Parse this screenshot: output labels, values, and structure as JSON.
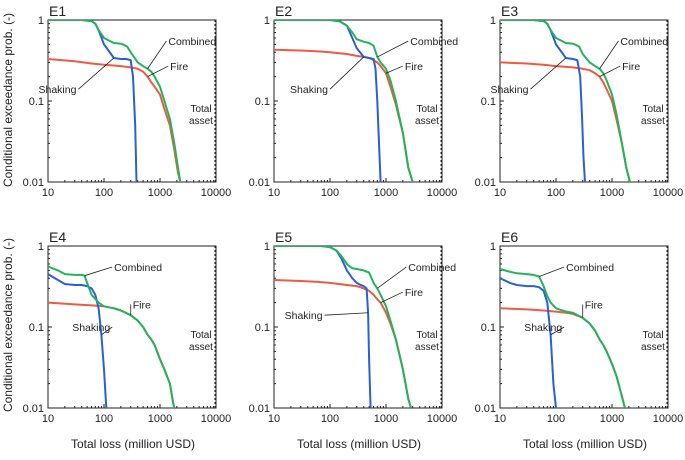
{
  "figure": {
    "ylabel": "Conditional exceedance prob. (-)",
    "xlabel": "Total loss (million USD)",
    "asset_label_line1": "Total",
    "asset_label_line2": "asset"
  },
  "colors": {
    "combined": "#22b45a",
    "fire": "#ee5a44",
    "shaking": "#2b5fd6",
    "asset_line": "#222222",
    "axis": "#222222"
  },
  "chart_data": [
    {
      "type": "line",
      "title": "E1",
      "xscale": "log",
      "yscale": "log",
      "xlim": [
        10,
        10000
      ],
      "ylim": [
        0.01,
        1
      ],
      "xticks": [
        "10",
        "100",
        "1000",
        "10000"
      ],
      "yticks": [
        "0.01",
        "0.1",
        "1"
      ],
      "total_asset_x": 10000,
      "series": [
        {
          "name": "Combined",
          "x": [
            10,
            40,
            60,
            70,
            80,
            100,
            150,
            200,
            230,
            260,
            300,
            400,
            500,
            600,
            700,
            800,
            1000,
            1200,
            1500,
            1800,
            2100,
            2300
          ],
          "y": [
            1,
            1,
            0.97,
            0.9,
            0.75,
            0.6,
            0.52,
            0.51,
            0.49,
            0.47,
            0.4,
            0.3,
            0.27,
            0.25,
            0.23,
            0.2,
            0.15,
            0.1,
            0.06,
            0.03,
            0.015,
            0.01
          ]
        },
        {
          "name": "Fire",
          "x": [
            10,
            30,
            60,
            100,
            200,
            300,
            400,
            500,
            600,
            700,
            800,
            1000,
            1200,
            1500,
            1800,
            2100,
            2300
          ],
          "y": [
            0.33,
            0.31,
            0.29,
            0.28,
            0.27,
            0.26,
            0.25,
            0.23,
            0.2,
            0.17,
            0.15,
            0.12,
            0.08,
            0.05,
            0.025,
            0.013,
            0.01
          ]
        },
        {
          "name": "Shaking",
          "x": [
            10,
            40,
            60,
            70,
            80,
            100,
            150,
            200,
            250,
            300,
            330,
            360,
            380
          ],
          "y": [
            1,
            1,
            0.97,
            0.9,
            0.75,
            0.5,
            0.34,
            0.33,
            0.33,
            0.32,
            0.2,
            0.05,
            0.01
          ]
        }
      ],
      "labels": [
        {
          "series": "Combined",
          "text": "Combined",
          "x": 1300,
          "y": 0.55
        },
        {
          "series": "Fire",
          "text": "Fire",
          "x": 1400,
          "y": 0.27
        },
        {
          "series": "Shaking",
          "text": "Shaking",
          "x": 35,
          "y": 0.14
        }
      ]
    },
    {
      "type": "line",
      "title": "E2",
      "xscale": "log",
      "yscale": "log",
      "xlim": [
        10,
        10000
      ],
      "ylim": [
        0.01,
        1
      ],
      "xticks": [
        "10",
        "100",
        "1000",
        "10000"
      ],
      "yticks": [
        "0.01",
        "0.1",
        "1"
      ],
      "total_asset_x": 10000,
      "series": [
        {
          "name": "Combined",
          "x": [
            10,
            100,
            150,
            200,
            250,
            300,
            400,
            500,
            600,
            700,
            800,
            1000,
            1200,
            1500,
            2000,
            2500,
            3000
          ],
          "y": [
            1,
            1,
            0.96,
            0.85,
            0.7,
            0.58,
            0.54,
            0.52,
            0.48,
            0.35,
            0.3,
            0.25,
            0.18,
            0.1,
            0.04,
            0.015,
            0.01
          ]
        },
        {
          "name": "Fire",
          "x": [
            10,
            30,
            60,
            100,
            200,
            300,
            400,
            500,
            600,
            700,
            800,
            1000,
            1200,
            1500,
            2000,
            2500,
            3000
          ],
          "y": [
            0.43,
            0.42,
            0.41,
            0.4,
            0.38,
            0.36,
            0.35,
            0.34,
            0.32,
            0.3,
            0.27,
            0.22,
            0.15,
            0.09,
            0.04,
            0.015,
            0.01
          ]
        },
        {
          "name": "Shaking",
          "x": [
            10,
            100,
            150,
            200,
            250,
            300,
            400,
            500,
            600,
            650,
            700,
            750,
            800
          ],
          "y": [
            1,
            1,
            0.96,
            0.85,
            0.6,
            0.45,
            0.35,
            0.34,
            0.33,
            0.25,
            0.1,
            0.03,
            0.01
          ]
        }
      ],
      "labels": [
        {
          "series": "Combined",
          "text": "Combined",
          "x": 2500,
          "y": 0.55
        },
        {
          "series": "Fire",
          "text": "Fire",
          "x": 2000,
          "y": 0.27
        },
        {
          "series": "Shaking",
          "text": "Shaking",
          "x": 100,
          "y": 0.14
        }
      ]
    },
    {
      "type": "line",
      "title": "E3",
      "xscale": "log",
      "yscale": "log",
      "xlim": [
        10,
        10000
      ],
      "ylim": [
        0.01,
        1
      ],
      "xticks": [
        "10",
        "100",
        "1000",
        "10000"
      ],
      "yticks": [
        "0.01",
        "0.1",
        "1"
      ],
      "total_asset_x": 10000,
      "series": [
        {
          "name": "Combined",
          "x": [
            10,
            40,
            60,
            70,
            80,
            100,
            150,
            200,
            230,
            260,
            300,
            400,
            500,
            600,
            700,
            800,
            1000,
            1200,
            1500,
            1800,
            2100
          ],
          "y": [
            1,
            1,
            0.97,
            0.9,
            0.75,
            0.6,
            0.52,
            0.51,
            0.49,
            0.47,
            0.38,
            0.3,
            0.27,
            0.25,
            0.22,
            0.18,
            0.12,
            0.07,
            0.03,
            0.015,
            0.01
          ]
        },
        {
          "name": "Fire",
          "x": [
            10,
            30,
            60,
            100,
            200,
            300,
            400,
            500,
            600,
            700,
            800,
            1000,
            1200,
            1500,
            1800,
            2100
          ],
          "y": [
            0.3,
            0.29,
            0.28,
            0.27,
            0.26,
            0.25,
            0.24,
            0.22,
            0.2,
            0.17,
            0.14,
            0.1,
            0.06,
            0.03,
            0.015,
            0.01
          ]
        },
        {
          "name": "Shaking",
          "x": [
            10,
            40,
            60,
            70,
            80,
            100,
            150,
            200,
            240,
            270,
            290,
            310,
            330
          ],
          "y": [
            1,
            1,
            0.97,
            0.9,
            0.75,
            0.5,
            0.34,
            0.33,
            0.32,
            0.2,
            0.07,
            0.02,
            0.01
          ]
        }
      ],
      "labels": [
        {
          "series": "Combined",
          "text": "Combined",
          "x": 1300,
          "y": 0.55
        },
        {
          "series": "Fire",
          "text": "Fire",
          "x": 1400,
          "y": 0.27
        },
        {
          "series": "Shaking",
          "text": "Shaking",
          "x": 35,
          "y": 0.14
        }
      ]
    },
    {
      "type": "line",
      "title": "E4",
      "xscale": "log",
      "yscale": "log",
      "xlim": [
        10,
        10000
      ],
      "ylim": [
        0.01,
        1
      ],
      "xticks": [
        "10",
        "100",
        "1000",
        "10000"
      ],
      "yticks": [
        "0.01",
        "0.1",
        "1"
      ],
      "total_asset_x": 10000,
      "series": [
        {
          "name": "Combined",
          "x": [
            10,
            15,
            20,
            30,
            40,
            45,
            50,
            60,
            80,
            100,
            150,
            200,
            300,
            400,
            500,
            600,
            700,
            800,
            1000,
            1200,
            1500,
            1700,
            1800
          ],
          "y": [
            0.56,
            0.5,
            0.45,
            0.44,
            0.44,
            0.43,
            0.35,
            0.25,
            0.2,
            0.18,
            0.17,
            0.16,
            0.14,
            0.12,
            0.1,
            0.08,
            0.07,
            0.06,
            0.04,
            0.03,
            0.02,
            0.012,
            0.01
          ]
        },
        {
          "name": "Fire",
          "x": [
            10,
            30,
            60,
            100,
            150,
            200,
            300,
            400,
            500,
            600,
            700,
            800,
            1000,
            1200,
            1500,
            1700,
            1800
          ],
          "y": [
            0.2,
            0.19,
            0.185,
            0.18,
            0.17,
            0.16,
            0.14,
            0.12,
            0.1,
            0.08,
            0.07,
            0.06,
            0.04,
            0.03,
            0.02,
            0.012,
            0.01
          ]
        },
        {
          "name": "Shaking",
          "x": [
            10,
            15,
            20,
            30,
            40,
            50,
            60,
            70,
            80,
            90,
            100,
            110
          ],
          "y": [
            0.45,
            0.38,
            0.34,
            0.33,
            0.33,
            0.32,
            0.3,
            0.25,
            0.17,
            0.08,
            0.03,
            0.01
          ]
        }
      ],
      "labels": [
        {
          "series": "Combined",
          "text": "Combined",
          "x": 140,
          "y": 0.55
        },
        {
          "series": "Fire",
          "text": "Fire",
          "x": 300,
          "y": 0.19
        },
        {
          "series": "Shaking",
          "text": "Shaking",
          "x": 140,
          "y": 0.1
        }
      ]
    },
    {
      "type": "line",
      "title": "E5",
      "xscale": "log",
      "yscale": "log",
      "xlim": [
        10,
        10000
      ],
      "ylim": [
        0.01,
        1
      ],
      "xticks": [
        "10",
        "100",
        "1000",
        "10000"
      ],
      "yticks": [
        "0.01",
        "0.1",
        "1"
      ],
      "total_asset_x": 10000,
      "series": [
        {
          "name": "Combined",
          "x": [
            10,
            70,
            100,
            130,
            160,
            200,
            250,
            300,
            400,
            500,
            600,
            700,
            800,
            1000,
            1200,
            1500,
            2000,
            2500,
            2800
          ],
          "y": [
            1,
            1,
            0.97,
            0.88,
            0.75,
            0.6,
            0.53,
            0.52,
            0.5,
            0.47,
            0.35,
            0.3,
            0.25,
            0.18,
            0.12,
            0.07,
            0.03,
            0.013,
            0.01
          ]
        },
        {
          "name": "Fire",
          "x": [
            10,
            30,
            60,
            100,
            200,
            300,
            400,
            500,
            600,
            700,
            800,
            1000,
            1200,
            1500,
            2000,
            2500,
            2800
          ],
          "y": [
            0.38,
            0.37,
            0.36,
            0.35,
            0.33,
            0.32,
            0.3,
            0.28,
            0.25,
            0.22,
            0.2,
            0.15,
            0.11,
            0.07,
            0.03,
            0.013,
            0.01
          ]
        },
        {
          "name": "Shaking",
          "x": [
            10,
            70,
            100,
            130,
            160,
            200,
            250,
            300,
            350,
            400,
            450,
            480,
            500,
            530
          ],
          "y": [
            1,
            1,
            0.97,
            0.88,
            0.7,
            0.5,
            0.4,
            0.35,
            0.33,
            0.32,
            0.3,
            0.15,
            0.04,
            0.01
          ]
        }
      ],
      "labels": [
        {
          "series": "Combined",
          "text": "Combined",
          "x": 2300,
          "y": 0.55
        },
        {
          "series": "Fire",
          "text": "Fire",
          "x": 2000,
          "y": 0.27
        },
        {
          "series": "Shaking",
          "text": "Shaking",
          "x": 80,
          "y": 0.14
        }
      ]
    },
    {
      "type": "line",
      "title": "E6",
      "xscale": "log",
      "yscale": "log",
      "xlim": [
        10,
        10000
      ],
      "ylim": [
        0.01,
        1
      ],
      "xticks": [
        "10",
        "100",
        "1000",
        "10000"
      ],
      "yticks": [
        "0.01",
        "0.1",
        "1"
      ],
      "total_asset_x": 10000,
      "series": [
        {
          "name": "Combined",
          "x": [
            10,
            15,
            20,
            30,
            40,
            50,
            60,
            70,
            80,
            100,
            150,
            200,
            300,
            400,
            500,
            600,
            700,
            800,
            1000,
            1200,
            1500,
            1700
          ],
          "y": [
            0.52,
            0.48,
            0.46,
            0.45,
            0.44,
            0.42,
            0.32,
            0.24,
            0.2,
            0.17,
            0.155,
            0.15,
            0.13,
            0.11,
            0.09,
            0.07,
            0.06,
            0.05,
            0.035,
            0.025,
            0.014,
            0.01
          ]
        },
        {
          "name": "Fire",
          "x": [
            10,
            30,
            60,
            100,
            150,
            200,
            300,
            400,
            500,
            600,
            700,
            800,
            1000,
            1200,
            1500,
            1700
          ],
          "y": [
            0.17,
            0.165,
            0.16,
            0.155,
            0.15,
            0.145,
            0.13,
            0.11,
            0.09,
            0.07,
            0.06,
            0.05,
            0.035,
            0.025,
            0.014,
            0.01
          ]
        },
        {
          "name": "Shaking",
          "x": [
            10,
            15,
            20,
            30,
            40,
            50,
            60,
            70,
            80,
            90,
            100
          ],
          "y": [
            0.4,
            0.35,
            0.33,
            0.32,
            0.32,
            0.31,
            0.28,
            0.2,
            0.08,
            0.02,
            0.01
          ]
        }
      ],
      "labels": [
        {
          "series": "Combined",
          "text": "Combined",
          "x": 140,
          "y": 0.55
        },
        {
          "series": "Fire",
          "text": "Fire",
          "x": 300,
          "y": 0.19
        },
        {
          "series": "Shaking",
          "text": "Shaking",
          "x": 140,
          "y": 0.1
        }
      ]
    }
  ]
}
